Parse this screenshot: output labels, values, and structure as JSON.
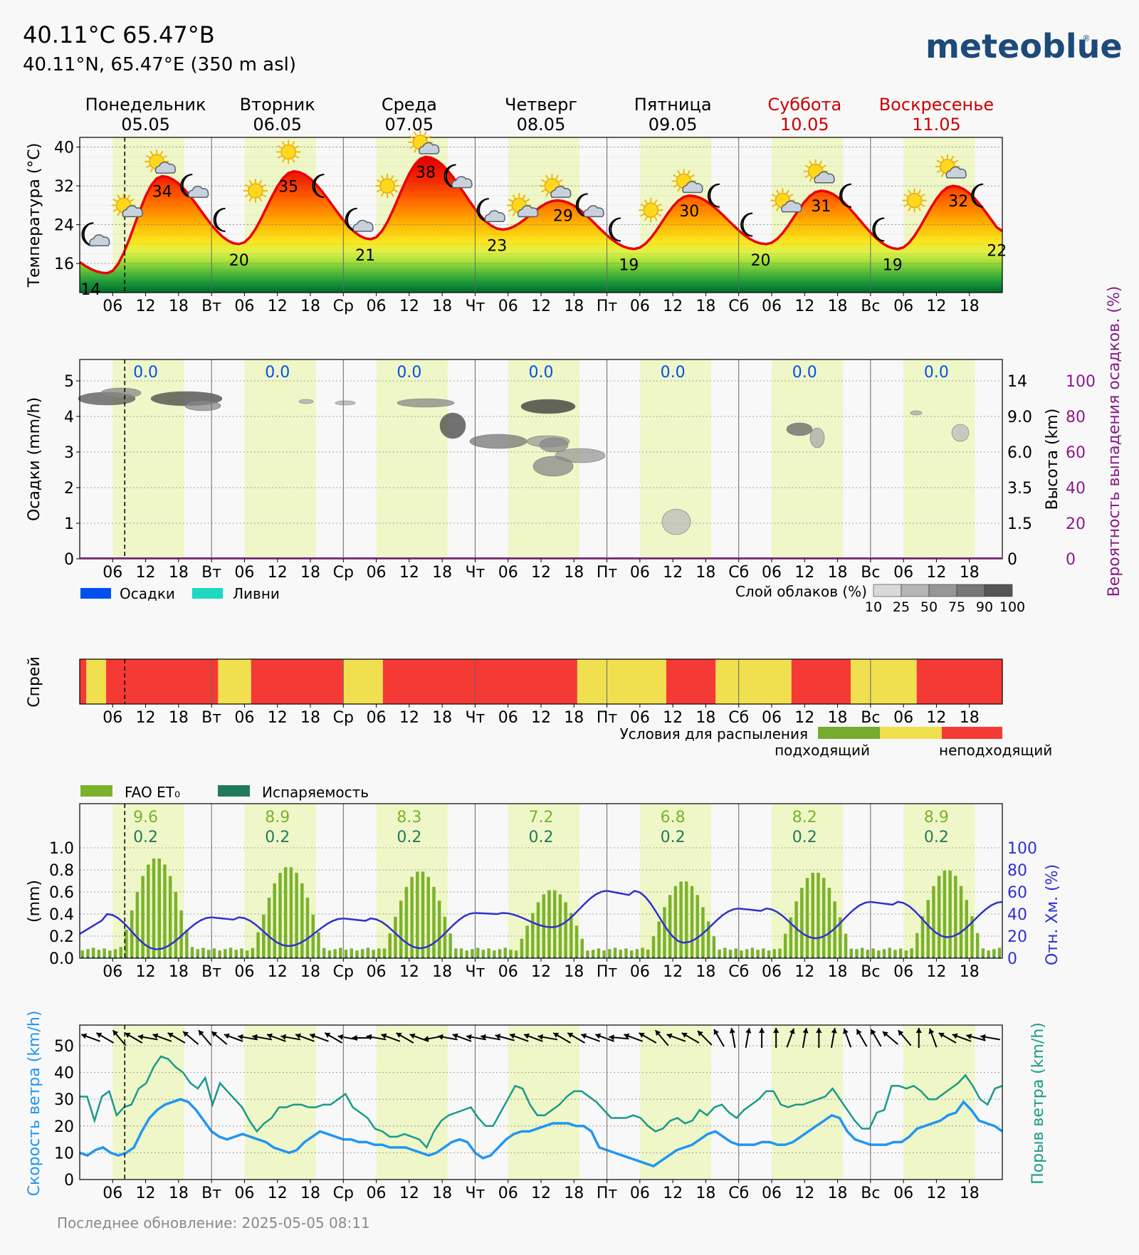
{
  "header": {
    "title": "40.11°C 65.47°B",
    "subtitle": "40.11°N, 65.47°E (350 m asl)",
    "logo": "meteoblue"
  },
  "days": [
    {
      "name": "Понедельник",
      "date": "05.05",
      "weekend": false
    },
    {
      "name": "Вторник",
      "date": "06.05",
      "weekend": false
    },
    {
      "name": "Среда",
      "date": "07.05",
      "weekend": false
    },
    {
      "name": "Четверг",
      "date": "08.05",
      "weekend": false
    },
    {
      "name": "Пятница",
      "date": "09.05",
      "weekend": false
    },
    {
      "name": "Суббота",
      "date": "10.05",
      "weekend": true
    },
    {
      "name": "Воскресенье",
      "date": "11.05",
      "weekend": true
    }
  ],
  "x_tick_labels": [
    "06",
    "12",
    "18",
    "Вт",
    "06",
    "12",
    "18",
    "Ср",
    "06",
    "12",
    "18",
    "Чт",
    "06",
    "12",
    "18",
    "Пт",
    "06",
    "12",
    "18",
    "Сб",
    "06",
    "12",
    "18",
    "Вс",
    "06",
    "12",
    "18"
  ],
  "colors": {
    "weekend": "#cc0000",
    "day_band": "#eff7c8",
    "temp_line": "#e8000b",
    "precip": "#0050f0",
    "showers": "#20d8c0",
    "humidity": "#3030d0",
    "wind": "#2196f3",
    "gust": "#1a9a8a",
    "prob": "#8b1a8b",
    "et0": "#7bb22c",
    "evap": "#217a5a",
    "spray_good": "#77ab2f",
    "spray_mid": "#f0e050",
    "spray_bad": "#f53a35"
  },
  "temperature": {
    "ylabel": "Температура (°C)",
    "yticks": [
      "16",
      "24",
      "32",
      "40"
    ],
    "ylim": [
      10,
      42
    ],
    "labels": [
      {
        "day": 0,
        "hour": 2,
        "value": "14"
      },
      {
        "day": 0,
        "hour": 15,
        "value": "34"
      },
      {
        "day": 1,
        "hour": 5,
        "value": "20"
      },
      {
        "day": 1,
        "hour": 14,
        "value": "35"
      },
      {
        "day": 2,
        "hour": 4,
        "value": "21"
      },
      {
        "day": 2,
        "hour": 15,
        "value": "38"
      },
      {
        "day": 3,
        "hour": 4,
        "value": "23"
      },
      {
        "day": 3,
        "hour": 16,
        "value": "29"
      },
      {
        "day": 4,
        "hour": 4,
        "value": "19"
      },
      {
        "day": 4,
        "hour": 15,
        "value": "30"
      },
      {
        "day": 5,
        "hour": 4,
        "value": "20"
      },
      {
        "day": 5,
        "hour": 15,
        "value": "31"
      },
      {
        "day": 6,
        "hour": 4,
        "value": "19"
      },
      {
        "day": 6,
        "hour": 16,
        "value": "32"
      },
      {
        "day": 6,
        "hour": 23,
        "value": "22"
      }
    ],
    "icons": [
      {
        "day": 0,
        "hour": 2,
        "type": "moon-cloud",
        "temp": 22
      },
      {
        "day": 0,
        "hour": 8,
        "type": "sun-cloud",
        "temp": 28
      },
      {
        "day": 0,
        "hour": 14,
        "type": "sun-cloud",
        "temp": 37
      },
      {
        "day": 0,
        "hour": 20,
        "type": "moon-cloud",
        "temp": 32
      },
      {
        "day": 1,
        "hour": 2,
        "type": "moon",
        "temp": 25
      },
      {
        "day": 1,
        "hour": 8,
        "type": "sun",
        "temp": 31
      },
      {
        "day": 1,
        "hour": 14,
        "type": "sun",
        "temp": 39
      },
      {
        "day": 1,
        "hour": 20,
        "type": "moon",
        "temp": 32
      },
      {
        "day": 2,
        "hour": 2,
        "type": "moon-cloud",
        "temp": 25
      },
      {
        "day": 2,
        "hour": 8,
        "type": "sun",
        "temp": 32
      },
      {
        "day": 2,
        "hour": 14,
        "type": "sun-cloud",
        "temp": 41
      },
      {
        "day": 2,
        "hour": 20,
        "type": "moon-cloud",
        "temp": 34
      },
      {
        "day": 3,
        "hour": 2,
        "type": "moon-cloud",
        "temp": 27
      },
      {
        "day": 3,
        "hour": 8,
        "type": "sun-cloud",
        "temp": 28
      },
      {
        "day": 3,
        "hour": 14,
        "type": "sun-cloud",
        "temp": 32
      },
      {
        "day": 3,
        "hour": 20,
        "type": "moon-cloud",
        "temp": 28
      },
      {
        "day": 4,
        "hour": 2,
        "type": "moon",
        "temp": 23
      },
      {
        "day": 4,
        "hour": 8,
        "type": "sun",
        "temp": 27
      },
      {
        "day": 4,
        "hour": 14,
        "type": "sun-cloud",
        "temp": 33
      },
      {
        "day": 4,
        "hour": 20,
        "type": "moon",
        "temp": 30
      },
      {
        "day": 5,
        "hour": 2,
        "type": "moon",
        "temp": 24
      },
      {
        "day": 5,
        "hour": 8,
        "type": "sun-cloud",
        "temp": 29
      },
      {
        "day": 5,
        "hour": 14,
        "type": "sun-cloud",
        "temp": 35
      },
      {
        "day": 5,
        "hour": 20,
        "type": "moon",
        "temp": 30
      },
      {
        "day": 6,
        "hour": 2,
        "type": "moon",
        "temp": 23
      },
      {
        "day": 6,
        "hour": 8,
        "type": "sun",
        "temp": 29
      },
      {
        "day": 6,
        "hour": 14,
        "type": "sun-cloud",
        "temp": 36
      },
      {
        "day": 6,
        "hour": 20,
        "type": "moon",
        "temp": 30
      }
    ]
  },
  "precipitation": {
    "ylabel": "Осадки (mm/h)",
    "yticks": [
      "0",
      "1",
      "2",
      "3",
      "4",
      "5"
    ],
    "height_label": "Высота (km)",
    "height_ticks": [
      "0",
      "1.5",
      "3.5",
      "6.0",
      "9.0",
      "14"
    ],
    "prob_label": "Вероятность выпадения осадков. (%)",
    "prob_ticks": [
      "0",
      "20",
      "40",
      "60",
      "80",
      "100"
    ],
    "daily_sums": [
      "0.0",
      "0.0",
      "0.0",
      "0.0",
      "0.0",
      "0.0",
      "0.0"
    ],
    "legend_precip": "Осадки",
    "legend_showers": "Ливни",
    "cloud_legend_title": "Слой облаков (%)",
    "cloud_legend_ticks": [
      "10",
      "25",
      "50",
      "75",
      "90",
      "100"
    ]
  },
  "spray": {
    "ylabel": "Спрей",
    "legend_title": "Условия для распыления",
    "legend_good": "подходящий",
    "legend_bad": "неподходящий",
    "segments": [
      {
        "from": 0,
        "to": 2,
        "level": "bad"
      },
      {
        "from": 2,
        "to": 8,
        "level": "mid"
      },
      {
        "from": 8,
        "to": 42,
        "level": "bad"
      },
      {
        "from": 42,
        "to": 52,
        "level": "mid"
      },
      {
        "from": 52,
        "to": 80,
        "level": "bad"
      },
      {
        "from": 80,
        "to": 92,
        "level": "mid"
      },
      {
        "from": 92,
        "to": 151,
        "level": "bad"
      },
      {
        "from": 151,
        "to": 178,
        "level": "mid"
      },
      {
        "from": 178,
        "to": 193,
        "level": "bad"
      },
      {
        "from": 193,
        "to": 216,
        "level": "mid"
      },
      {
        "from": 216,
        "to": 234,
        "level": "bad"
      },
      {
        "from": 234,
        "to": 254,
        "level": "mid"
      },
      {
        "from": 254,
        "to": 280,
        "level": "bad"
      }
    ]
  },
  "evapotranspiration": {
    "ylabel": "(mm)",
    "yticks": [
      "0.0",
      "0.2",
      "0.4",
      "0.6",
      "0.8",
      "1.0"
    ],
    "rh_label": "Отн. Хм. (%)",
    "rh_ticks": [
      "0",
      "20",
      "40",
      "60",
      "80",
      "100"
    ],
    "legend_fao": "FAO ET₀",
    "legend_evap": "Испаряемость",
    "daily_fao": [
      "9.6",
      "8.9",
      "8.3",
      "7.2",
      "6.8",
      "8.2",
      "8.9"
    ],
    "daily_evap": [
      "0.2",
      "0.2",
      "0.2",
      "0.2",
      "0.2",
      "0.2",
      "0.2"
    ],
    "peaks": [
      0.91,
      0.83,
      0.79,
      0.62,
      0.7,
      0.78,
      0.8
    ]
  },
  "wind": {
    "ylabel": "Скорость ветра (km/h)",
    "gust_label": "Порыв ветра (km/h)",
    "yticks": [
      "0",
      "10",
      "20",
      "30",
      "40",
      "50"
    ]
  },
  "footer": {
    "updated": "Последнее обновление: 2025-05-05 08:11"
  },
  "chart_data": [
    {
      "type": "line",
      "title": "",
      "ylabel": "Температура (°C)",
      "ylim": [
        10,
        42
      ],
      "series": [
        {
          "name": "",
          "values_daily_min_max": [
            [
              14,
              34
            ],
            [
              20,
              35
            ],
            [
              21,
              38
            ],
            [
              23,
              29
            ],
            [
              19,
              30
            ],
            [
              20,
              31
            ],
            [
              19,
              32
            ]
          ]
        }
      ]
    },
    {
      "type": "bar",
      "ylabel": "Осадки (mm/h)",
      "ylim": [
        0,
        5.5
      ],
      "categories": [
        "05.05",
        "06.05",
        "07.05",
        "08.05",
        "09.05",
        "10.05",
        "11.05"
      ],
      "series": [
        {
          "name": "Осадки",
          "values": [
            0,
            0,
            0,
            0,
            0,
            0,
            0
          ]
        }
      ]
    },
    {
      "type": "bar",
      "ylabel": "(mm)",
      "ylim": [
        0,
        1.0
      ],
      "categories": [
        "05.05",
        "06.05",
        "07.05",
        "08.05",
        "09.05",
        "10.05",
        "11.05"
      ],
      "series": [
        {
          "name": "FAO ET₀",
          "values": [
            9.6,
            8.9,
            8.3,
            7.2,
            6.8,
            8.2,
            8.9
          ]
        },
        {
          "name": "Испаряемость",
          "values": [
            0.2,
            0.2,
            0.2,
            0.2,
            0.2,
            0.2,
            0.2
          ]
        }
      ]
    },
    {
      "type": "line",
      "ylabel": "Скорость ветра (km/h)",
      "ylim": [
        0,
        55
      ],
      "series": [
        {
          "name": "Скорость ветра"
        },
        {
          "name": "Порыв ветра"
        }
      ]
    }
  ]
}
